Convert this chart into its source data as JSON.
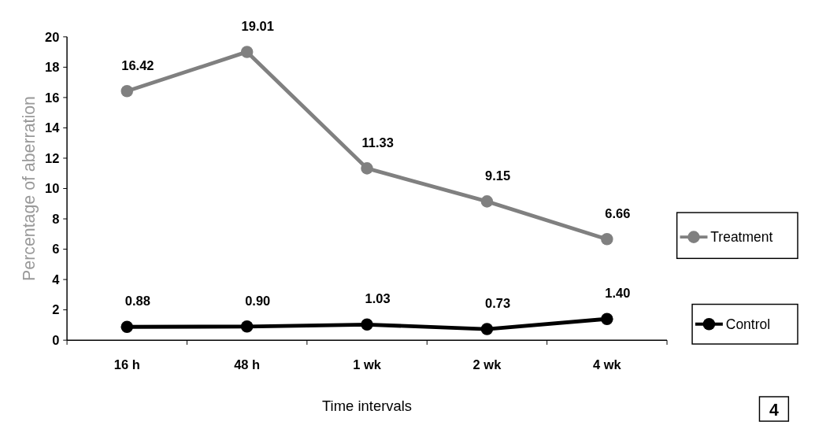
{
  "chart_data": {
    "type": "line",
    "xlabel": "Time intervals",
    "ylabel": "Percentage of aberration",
    "categories": [
      "16 h",
      "48 h",
      "1 wk",
      "2 wk",
      "4 wk"
    ],
    "series": [
      {
        "name": "Treatment",
        "color": "#808080",
        "values": [
          16.42,
          19.01,
          11.33,
          9.15,
          6.66
        ],
        "value_labels": [
          "16.42",
          "19.01",
          "11.33",
          "9.15",
          "6.66"
        ]
      },
      {
        "name": "Control",
        "color": "#000000",
        "values": [
          0.88,
          0.9,
          1.03,
          0.73,
          1.4
        ],
        "value_labels": [
          "0.88",
          "0.90",
          "1.03",
          "0.73",
          "1.40"
        ]
      }
    ],
    "ylim": [
      0,
      20
    ],
    "yticks": [
      0,
      2,
      4,
      6,
      8,
      10,
      12,
      14,
      16,
      18,
      20
    ],
    "grid": false,
    "legend": "right",
    "marker": "circle",
    "line_style": "solid",
    "annotations": [
      "4"
    ]
  }
}
